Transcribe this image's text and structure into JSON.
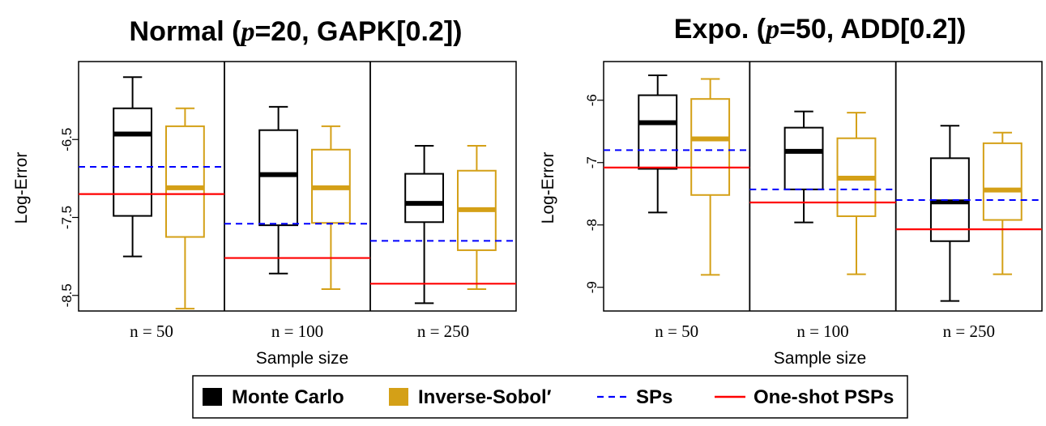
{
  "chart_data": [
    {
      "type": "box",
      "title_prefix": "Normal (",
      "title_math": "p",
      "title_suffix": "=20, GAPK[0.2])",
      "ylabel": "Log-Error",
      "xlabel": "Sample size",
      "ylim": [
        -8.7,
        -5.5
      ],
      "yticks": [
        -6.5,
        -7.5,
        -8.5
      ],
      "ytick_labels": [
        "-6.5",
        "-7.5",
        "-8.5"
      ],
      "categories": [
        "n = 50",
        "n = 100",
        "n = 250"
      ],
      "boxes": [
        {
          "group": "n = 50",
          "series": "Monte Carlo",
          "min": -8.0,
          "q1": -7.48,
          "median": -6.43,
          "q3": -6.1,
          "max": -5.7
        },
        {
          "group": "n = 50",
          "series": "Inverse-Sobol′",
          "min": -8.67,
          "q1": -7.75,
          "median": -7.12,
          "q3": -6.33,
          "max": -6.1
        },
        {
          "group": "n = 100",
          "series": "Monte Carlo",
          "min": -8.22,
          "q1": -7.6,
          "median": -6.95,
          "q3": -6.38,
          "max": -6.08
        },
        {
          "group": "n = 100",
          "series": "Inverse-Sobol′",
          "min": -8.42,
          "q1": -7.57,
          "median": -7.12,
          "q3": -6.63,
          "max": -6.33
        },
        {
          "group": "n = 250",
          "series": "Monte Carlo",
          "min": -8.6,
          "q1": -7.56,
          "median": -7.32,
          "q3": -6.94,
          "max": -6.58
        },
        {
          "group": "n = 250",
          "series": "Inverse-Sobol′",
          "min": -8.42,
          "q1": -7.92,
          "median": -7.4,
          "q3": -6.9,
          "max": -6.58
        }
      ],
      "sp_lines": [
        -6.85,
        -7.58,
        -7.8
      ],
      "pso_lines": [
        -7.2,
        -8.02,
        -8.35
      ]
    },
    {
      "type": "box",
      "title_prefix": "Expo. (",
      "title_math": "p",
      "title_suffix": "=50, ADD[0.2])",
      "ylabel": "Log-Error",
      "xlabel": "Sample size",
      "ylim": [
        -9.38,
        -5.38
      ],
      "yticks": [
        -6,
        -7,
        -8,
        -9
      ],
      "ytick_labels": [
        "-6",
        "-7",
        "-8",
        "-9"
      ],
      "categories": [
        "n = 50",
        "n = 100",
        "n = 250"
      ],
      "boxes": [
        {
          "group": "n = 50",
          "series": "Monte Carlo",
          "min": -7.8,
          "q1": -7.1,
          "median": -6.36,
          "q3": -5.92,
          "max": -5.6
        },
        {
          "group": "n = 50",
          "series": "Inverse-Sobol′",
          "min": -8.8,
          "q1": -7.52,
          "median": -6.62,
          "q3": -5.98,
          "max": -5.66
        },
        {
          "group": "n = 100",
          "series": "Monte Carlo",
          "min": -7.96,
          "q1": -7.43,
          "median": -6.82,
          "q3": -6.44,
          "max": -6.18
        },
        {
          "group": "n = 100",
          "series": "Inverse-Sobol′",
          "min": -8.79,
          "q1": -7.86,
          "median": -7.25,
          "q3": -6.61,
          "max": -6.2
        },
        {
          "group": "n = 250",
          "series": "Monte Carlo",
          "min": -9.22,
          "q1": -8.26,
          "median": -7.63,
          "q3": -6.93,
          "max": -6.41
        },
        {
          "group": "n = 250",
          "series": "Inverse-Sobol′",
          "min": -8.79,
          "q1": -7.92,
          "median": -7.44,
          "q3": -6.69,
          "max": -6.52
        }
      ],
      "sp_lines": [
        -6.8,
        -7.43,
        -7.6
      ],
      "pso_lines": [
        -7.08,
        -7.64,
        -8.07
      ]
    }
  ],
  "legend": {
    "items": [
      {
        "label": "Monte Carlo",
        "kind": "box",
        "color": "#000000"
      },
      {
        "label": "Inverse-Sobol′",
        "kind": "box",
        "color": "#d4a017"
      },
      {
        "label": "SPs",
        "kind": "dashed",
        "color": "#0000ff"
      },
      {
        "label": "One-shot PSPs",
        "kind": "solid",
        "color": "#ff0000"
      }
    ]
  },
  "colors": {
    "monte_carlo": "#000000",
    "inverse_sobol": "#d4a017",
    "sp": "#0000ff",
    "pso": "#ff0000"
  }
}
